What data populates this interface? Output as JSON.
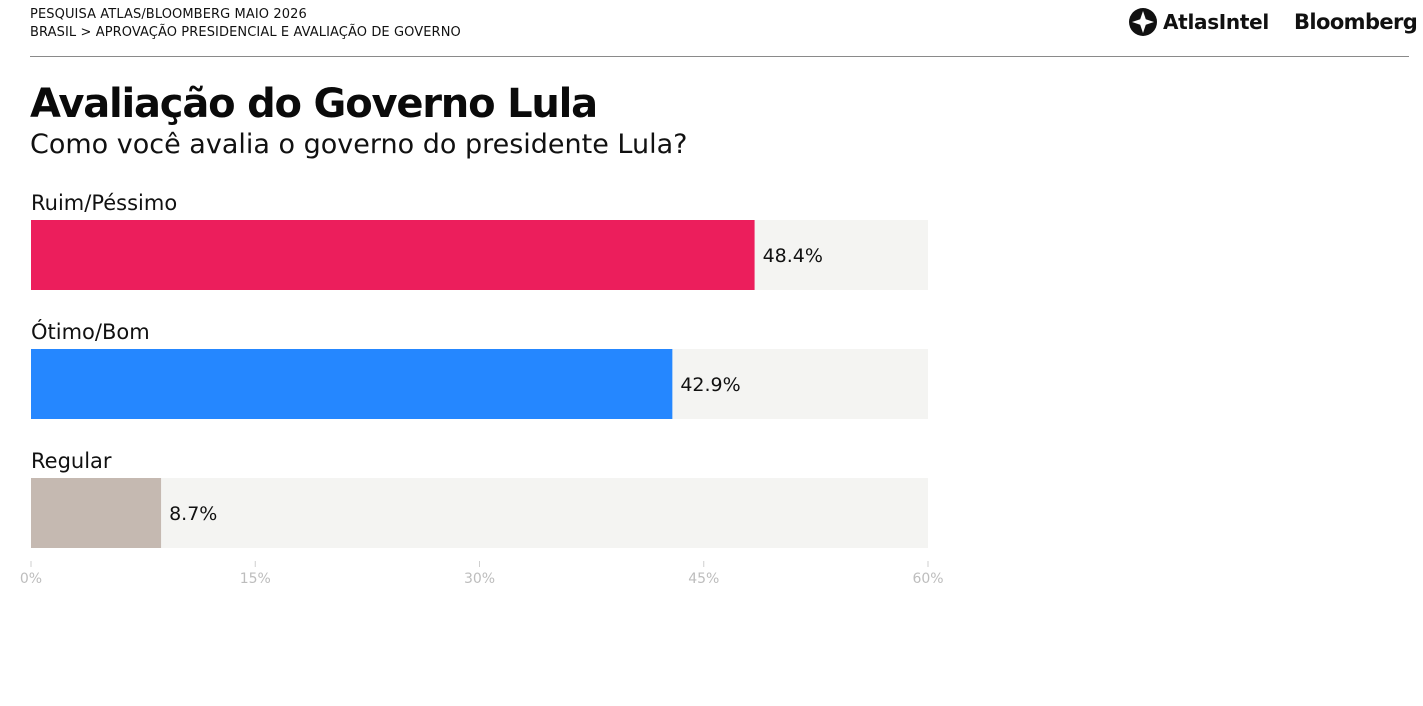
{
  "header": {
    "line1": "PESQUISA ATLAS/BLOOMBERG MAIO 2026",
    "line2": "BRASIL > APROVAÇÃO PRESIDENCIAL E AVALIAÇÃO DE GOVERNO",
    "logo_atlas": "AtlasIntel",
    "logo_bloomberg": "Bloomberg"
  },
  "chart_data": {
    "type": "bar",
    "orientation": "horizontal",
    "title": "Avaliação do Governo Lula",
    "subtitle": "Como você avalia o governo do presidente Lula?",
    "categories": [
      "Ruim/Péssimo",
      "Ótimo/Bom",
      "Regular"
    ],
    "values": [
      48.4,
      42.9,
      8.7
    ],
    "value_labels": [
      "48.4%",
      "42.9%",
      "8.7%"
    ],
    "colors": [
      "#ec1e5c",
      "#2587ff",
      "#c5b9b1"
    ],
    "track_color": "#f4f4f2",
    "xlim": [
      0,
      60
    ],
    "ticks": [
      0,
      15,
      30,
      45,
      60
    ],
    "tick_labels": [
      "0%",
      "15%",
      "30%",
      "45%",
      "60%"
    ],
    "grid": false,
    "legend": "none"
  }
}
